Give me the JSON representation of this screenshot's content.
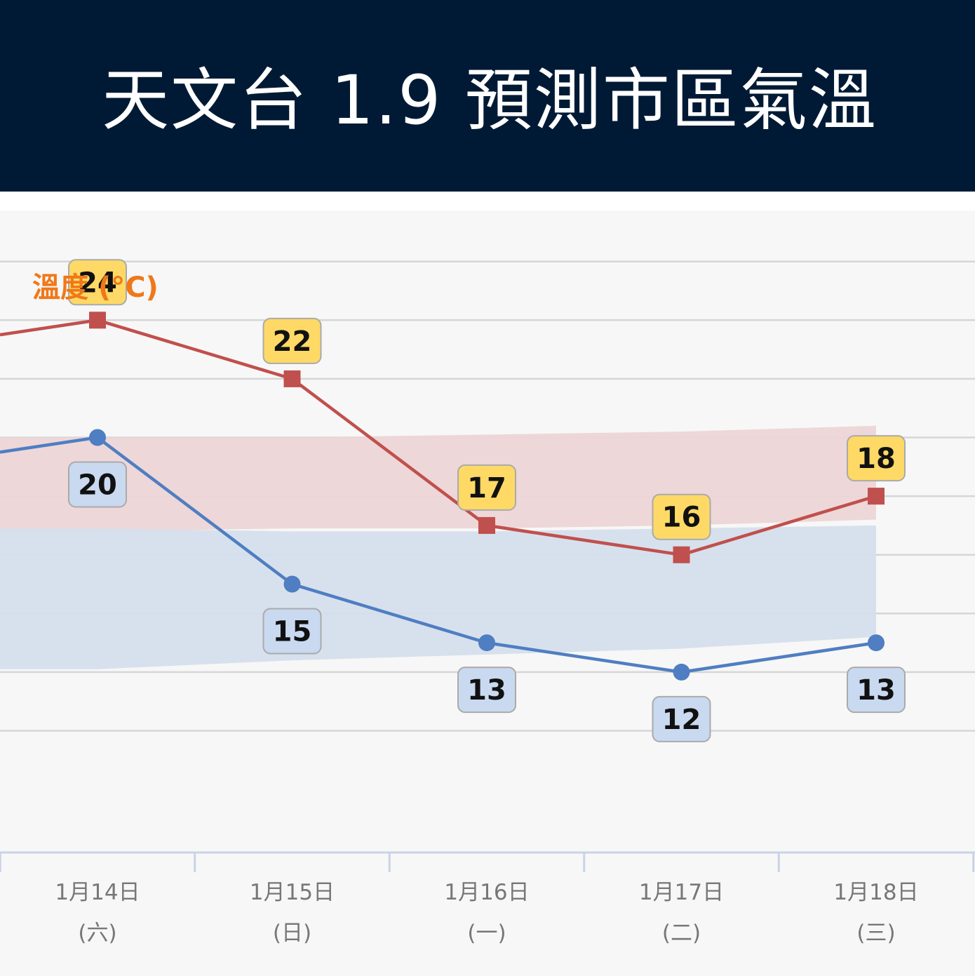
{
  "header": {
    "title": "天文台 1.9 預測市區氣溫"
  },
  "colors": {
    "header_bg": "#001a35",
    "max_line": "#c0504d",
    "min_line": "#4f7ec2",
    "max_band": "#edd5d6",
    "min_band": "#d5dfec",
    "max_label_bg": "#ffd966",
    "min_label_bg": "#c9d9f0",
    "ylabel": "#f07818"
  },
  "chart_data": {
    "type": "line",
    "ylabel": "溫度 (°C)",
    "categories": [
      {
        "date": "1月14日",
        "weekday": "(六)"
      },
      {
        "date": "1月15日",
        "weekday": "(日)"
      },
      {
        "date": "1月16日",
        "weekday": "(一)"
      },
      {
        "date": "1月17日",
        "weekday": "(二)"
      },
      {
        "date": "1月18日",
        "weekday": "(三)"
      }
    ],
    "series": [
      {
        "key": "max",
        "values": [
          24,
          22,
          17,
          16,
          18
        ],
        "prev_value": 23.5
      },
      {
        "key": "min",
        "values": [
          20,
          15,
          13,
          12,
          13
        ],
        "prev_value": 19.5
      }
    ],
    "bands": [
      {
        "key": "max_normal",
        "upper": [
          20,
          20,
          20.1,
          20.2,
          20.4
        ],
        "lower": [
          16.8,
          16.9,
          16.9,
          17.0,
          17.2
        ]
      },
      {
        "key": "min_normal",
        "upper": [
          16.9,
          16.8,
          16.8,
          16.9,
          17.0
        ],
        "lower": [
          12.1,
          12.4,
          12.6,
          12.8,
          13.2
        ]
      }
    ],
    "ylim": [
      10,
      26
    ],
    "grid": true
  }
}
